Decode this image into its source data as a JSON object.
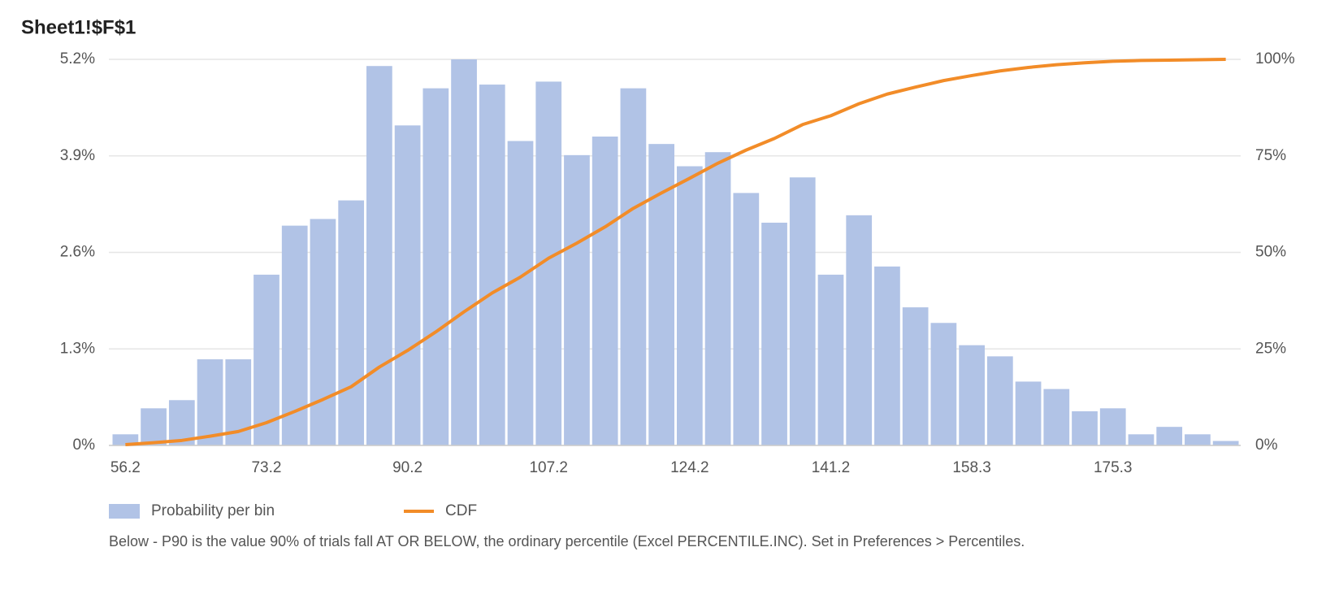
{
  "chart_data": {
    "type": "histogram-cdf",
    "title": "Sheet1!$F$1",
    "categories": [
      "56.2",
      null,
      null,
      null,
      null,
      "73.2",
      null,
      null,
      null,
      null,
      "90.2",
      null,
      null,
      null,
      null,
      "107.2",
      null,
      null,
      null,
      null,
      "124.2",
      null,
      null,
      null,
      null,
      "141.2",
      null,
      null,
      null,
      null,
      "158.3",
      null,
      null,
      null,
      null,
      "175.3",
      null,
      null,
      null,
      null
    ],
    "series": [
      {
        "name": "Probability per bin",
        "color": "#b1c3e6",
        "values": [
          0.15,
          0.5,
          0.61,
          1.16,
          1.16,
          2.3,
          2.96,
          3.05,
          3.3,
          5.11,
          4.31,
          4.81,
          5.2,
          4.86,
          4.1,
          4.9,
          3.91,
          4.16,
          4.81,
          4.06,
          3.76,
          3.95,
          3.4,
          3.0,
          3.61,
          2.3,
          3.1,
          2.41,
          1.86,
          1.65,
          1.35,
          1.2,
          0.86,
          0.76,
          0.46,
          0.5,
          0.15,
          0.25,
          0.15,
          0.06
        ]
      },
      {
        "name": "CDF",
        "color": "#f28c28",
        "axis": "y2",
        "values": [
          0.2,
          0.7,
          1.3,
          2.4,
          3.6,
          5.9,
          8.8,
          11.9,
          15.2,
          20.3,
          24.6,
          29.4,
          34.6,
          39.5,
          43.6,
          48.5,
          52.4,
          56.6,
          61.4,
          65.4,
          69.2,
          73.1,
          76.5,
          79.5,
          83.1,
          85.4,
          88.5,
          91.0,
          92.8,
          94.5,
          95.8,
          97.0,
          97.9,
          98.6,
          99.1,
          99.5,
          99.7,
          99.8,
          99.9,
          100
        ]
      }
    ],
    "ylim": [
      0,
      5.2
    ],
    "yticks": [
      {
        "value": 0,
        "label": "0%"
      },
      {
        "value": 1.3,
        "label": "1.3%"
      },
      {
        "value": 2.6,
        "label": "2.6%"
      },
      {
        "value": 3.9,
        "label": "3.9%"
      },
      {
        "value": 5.2,
        "label": "5.2%"
      }
    ],
    "y2lim": [
      0,
      100
    ],
    "y2ticks": [
      {
        "value": 0,
        "label": "0%"
      },
      {
        "value": 25,
        "label": "25%"
      },
      {
        "value": 50,
        "label": "50%"
      },
      {
        "value": 75,
        "label": "75%"
      },
      {
        "value": 100,
        "label": "100%"
      }
    ],
    "grid": true,
    "legend": "bottom-left",
    "footnote": "Below - P90 is the value 90% of trials fall AT OR BELOW, the ordinary percentile (Excel PERCENTILE.INC). Set in Preferences > Percentiles."
  }
}
